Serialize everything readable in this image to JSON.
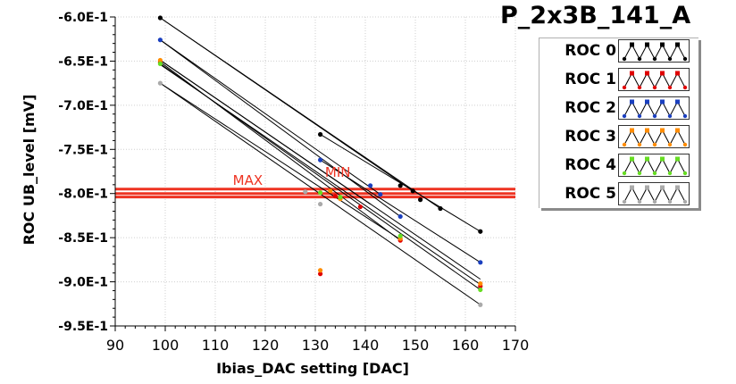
{
  "chart_data": {
    "type": "scatter",
    "title": "P_2x3B_141_A",
    "xlabel": "Ibias_DAC setting [DAC]",
    "ylabel": "ROC UB_level [mV]",
    "xlim": [
      90,
      170
    ],
    "ylim": [
      -0.95,
      -0.6
    ],
    "x_ticks": [
      90,
      100,
      110,
      120,
      130,
      140,
      150,
      160,
      170
    ],
    "y_ticks": [
      -0.6,
      -0.65,
      -0.7,
      -0.75,
      -0.8,
      -0.85,
      -0.9,
      -0.95
    ],
    "x_tick_labels": [
      "90",
      "100",
      "110",
      "120",
      "130",
      "140",
      "150",
      "160",
      "170"
    ],
    "y_tick_labels": [
      "-6.0E-1",
      "-6.5E-1",
      "-7.0E-1",
      "-7.5E-1",
      "-8.0E-1",
      "-8.5E-1",
      "-9.0E-1",
      "-9.5E-1"
    ],
    "grid": true,
    "legend_position": "top-right",
    "series": [
      {
        "name": "ROC 0",
        "color": "#000000",
        "points": [
          [
            99,
            -0.601
          ],
          [
            131,
            -0.733
          ],
          [
            147,
            -0.791
          ],
          [
            149.5,
            -0.797
          ],
          [
            151,
            -0.807
          ],
          [
            155,
            -0.817
          ],
          [
            163,
            -0.843
          ]
        ]
      },
      {
        "name": "ROC 1",
        "color": "#e00000",
        "points": [
          [
            99,
            -0.651
          ],
          [
            131,
            -0.891
          ],
          [
            134,
            -0.803
          ],
          [
            139,
            -0.815
          ],
          [
            147,
            -0.853
          ],
          [
            163,
            -0.905
          ]
        ]
      },
      {
        "name": "ROC 2",
        "color": "#1a3fbf",
        "points": [
          [
            99,
            -0.626
          ],
          [
            131,
            -0.762
          ],
          [
            141,
            -0.791
          ],
          [
            143,
            -0.801
          ],
          [
            147,
            -0.826
          ],
          [
            163,
            -0.878
          ]
        ]
      },
      {
        "name": "ROC 3",
        "color": "#ff8c00",
        "points": [
          [
            99,
            -0.649
          ],
          [
            131,
            -0.887
          ],
          [
            133,
            -0.797
          ],
          [
            135,
            -0.806
          ],
          [
            147,
            -0.851
          ],
          [
            163,
            -0.902
          ]
        ]
      },
      {
        "name": "ROC 4",
        "color": "#66dd22",
        "points": [
          [
            99,
            -0.653
          ],
          [
            131,
            -0.799
          ],
          [
            135,
            -0.804
          ],
          [
            147,
            -0.848
          ],
          [
            163,
            -0.909
          ]
        ]
      },
      {
        "name": "ROC 5",
        "color": "#aaaaaa",
        "points": [
          [
            99,
            -0.675
          ],
          [
            131,
            -0.812
          ],
          [
            128,
            -0.798
          ],
          [
            163,
            -0.926
          ]
        ]
      }
    ],
    "lines": [
      [
        [
          99,
          -0.601
        ],
        [
          149.5,
          -0.797
        ]
      ],
      [
        [
          99,
          -0.601
        ],
        [
          155,
          -0.817
        ]
      ],
      [
        [
          131,
          -0.733
        ],
        [
          163,
          -0.843
        ]
      ],
      [
        [
          99,
          -0.626
        ],
        [
          143,
          -0.801
        ]
      ],
      [
        [
          99,
          -0.626
        ],
        [
          147,
          -0.826
        ]
      ],
      [
        [
          99,
          -0.649
        ],
        [
          141,
          -0.812
        ]
      ],
      [
        [
          99,
          -0.651
        ],
        [
          147,
          -0.853
        ]
      ],
      [
        [
          99,
          -0.653
        ],
        [
          163,
          -0.909
        ]
      ],
      [
        [
          99,
          -0.654
        ],
        [
          163,
          -0.903
        ]
      ],
      [
        [
          99,
          -0.649
        ],
        [
          163,
          -0.897
        ]
      ],
      [
        [
          99,
          -0.675
        ],
        [
          163,
          -0.926
        ]
      ],
      [
        [
          99,
          -0.675
        ],
        [
          147,
          -0.852
        ]
      ],
      [
        [
          131,
          -0.762
        ],
        [
          163,
          -0.878
        ]
      ]
    ],
    "horizontal_lines": [
      {
        "label": "MAX",
        "color": "#ee3322",
        "values": [
          -0.795,
          -0.8
        ]
      },
      {
        "label": "MIN",
        "color": "#ee3322",
        "values": [
          -0.804
        ]
      }
    ],
    "annotations": [
      {
        "text": "MAX",
        "x": 116.5,
        "y": -0.79
      },
      {
        "text": "MIN",
        "x": 134.5,
        "y": -0.781
      }
    ]
  },
  "legend": {
    "items": [
      {
        "label": "ROC 0",
        "color": "#000000"
      },
      {
        "label": "ROC 1",
        "color": "#e00000"
      },
      {
        "label": "ROC 2",
        "color": "#1a3fbf"
      },
      {
        "label": "ROC 3",
        "color": "#ff8c00"
      },
      {
        "label": "ROC 4",
        "color": "#66dd22"
      },
      {
        "label": "ROC 5",
        "color": "#aaaaaa"
      }
    ]
  }
}
